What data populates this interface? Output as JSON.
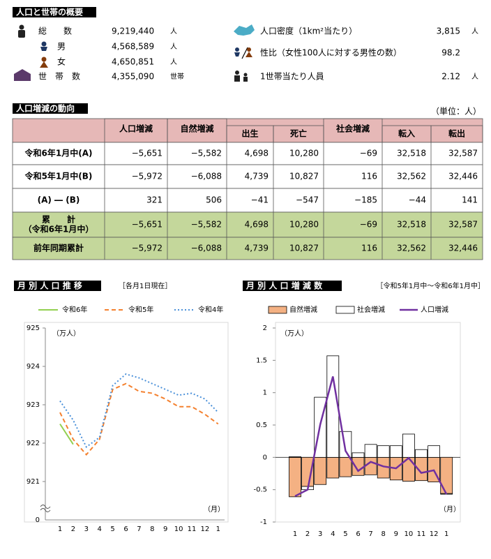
{
  "summary": {
    "title": "人口と世帯の概要",
    "left": [
      {
        "label": "総　　数",
        "value": "9,219,440",
        "unit": "人"
      },
      {
        "label": "男",
        "value": "4,568,589",
        "unit": "人"
      },
      {
        "label": "女",
        "value": "4,650,851",
        "unit": "人"
      },
      {
        "label": "世　帯　数",
        "value": "4,355,090",
        "unit": "世帯"
      }
    ],
    "right": [
      {
        "label": "人口密度（1km²当たり）",
        "value": "3,815",
        "unit": "人"
      },
      {
        "label": "性比（女性100人に対する男性の数）",
        "value": "98.2"
      },
      {
        "label": "1世帯当たり人員",
        "value": "2.12",
        "unit": "人"
      }
    ]
  },
  "table": {
    "title": "人口増減の動向",
    "unit": "（単位：人）",
    "headers": [
      "人口増減",
      "自然増減",
      "出生",
      "死亡",
      "社会増減",
      "転入",
      "転出"
    ],
    "rows": [
      {
        "label": [
          "令和6年1月中(A)"
        ],
        "cells": [
          "−5,651",
          "−5,582",
          "4,698",
          "10,280",
          "−69",
          "32,518",
          "32,587"
        ]
      },
      {
        "label": [
          "令和5年1月中(B)"
        ],
        "cells": [
          "−5,972",
          "−6,088",
          "4,739",
          "10,827",
          "116",
          "32,562",
          "32,446"
        ]
      },
      {
        "label": [
          "(A) ― (B)"
        ],
        "cells": [
          "321",
          "506",
          "−41",
          "−547",
          "−185",
          "−44",
          "141"
        ]
      },
      {
        "label": [
          "累　　計",
          "（令和6年1月中）"
        ],
        "cells": [
          "−5,651",
          "−5,582",
          "4,698",
          "10,280",
          "−69",
          "32,518",
          "32,587"
        ]
      },
      {
        "label": [
          "前年同期累計"
        ],
        "cells": [
          "−5,972",
          "−6,088",
          "4,739",
          "10,827",
          "116",
          "32,562",
          "32,446"
        ]
      }
    ]
  },
  "chart_data": [
    {
      "type": "line",
      "title": "月 別 人 口 推 移",
      "subtitle": "［各月1日現在］",
      "y_unit": "（万人）",
      "x_unit": "（月）",
      "categories": [
        "1",
        "2",
        "3",
        "4",
        "5",
        "6",
        "7",
        "8",
        "9",
        "10",
        "11",
        "12",
        "1"
      ],
      "ylim": [
        920,
        925
      ],
      "yticks": [
        921,
        922,
        923,
        924,
        925
      ],
      "axis_floor": 0,
      "series": [
        {
          "name": "令和6年",
          "color": "#92d050",
          "style": "solid",
          "values": [
            922.5,
            921.97,
            null,
            null,
            null,
            null,
            null,
            null,
            null,
            null,
            null,
            null,
            null
          ]
        },
        {
          "name": "令和5年",
          "color": "#f4812f",
          "style": "dashed",
          "values": [
            922.8,
            922.1,
            921.7,
            922.1,
            923.4,
            923.55,
            923.35,
            923.3,
            923.15,
            922.95,
            922.95,
            922.75,
            922.5
          ]
        },
        {
          "name": "令和4年",
          "color": "#4a90d9",
          "style": "dotted",
          "values": [
            923.1,
            922.6,
            921.9,
            922.15,
            923.5,
            923.8,
            923.7,
            923.55,
            923.4,
            923.25,
            923.3,
            923.15,
            922.8
          ]
        }
      ]
    },
    {
      "type": "bar_line",
      "title": "月 別 人 口 増 減 数",
      "subtitle": "［令和5年1月中～令和6年1月中］",
      "y_unit": "（万人）",
      "x_unit": "（月）",
      "categories": [
        "1",
        "2",
        "3",
        "4",
        "5",
        "6",
        "7",
        "8",
        "9",
        "10",
        "11",
        "12",
        "1"
      ],
      "ylim": [
        -1,
        2
      ],
      "yticks": [
        -1,
        -0.5,
        0,
        0.5,
        1,
        1.5,
        2
      ],
      "series": [
        {
          "name": "自然増減",
          "type": "bar",
          "color": "#f4b183",
          "values": [
            -0.61,
            -0.45,
            -0.42,
            -0.32,
            -0.3,
            -0.28,
            -0.27,
            -0.32,
            -0.35,
            -0.37,
            -0.36,
            -0.38,
            -0.56
          ]
        },
        {
          "name": "社会増減",
          "type": "bar",
          "color": "#ffffff",
          "values": [
            0.01,
            -0.05,
            0.93,
            1.57,
            0.4,
            0.07,
            0.2,
            0.18,
            0.18,
            0.36,
            0.12,
            0.18,
            -0.01
          ]
        },
        {
          "name": "人口増減",
          "type": "line",
          "color": "#7030a0",
          "values": [
            -0.6,
            -0.5,
            0.51,
            1.25,
            0.1,
            -0.21,
            -0.07,
            -0.14,
            -0.17,
            -0.01,
            -0.24,
            -0.2,
            -0.57
          ]
        }
      ]
    }
  ]
}
